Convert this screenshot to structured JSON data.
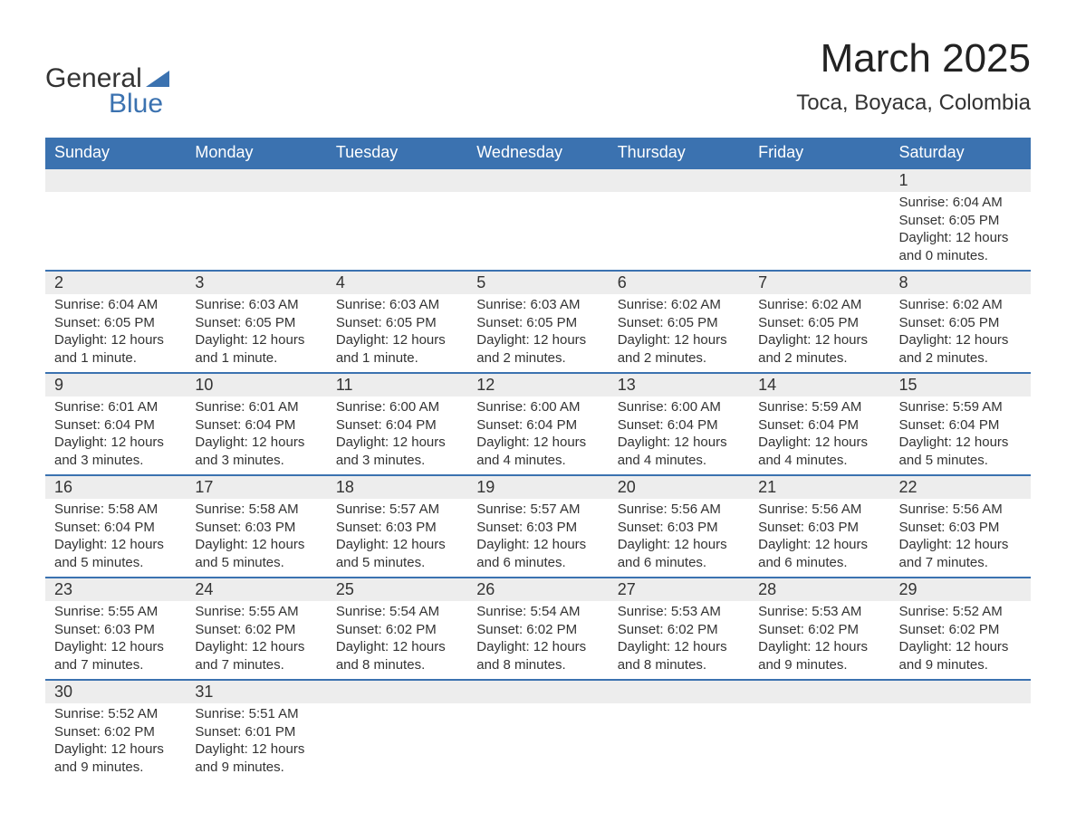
{
  "brand": {
    "general": "General",
    "blue": "Blue",
    "accent_color": "#3b72b0"
  },
  "title": "March 2025",
  "location": "Toca, Boyaca, Colombia",
  "weekdays": [
    "Sunday",
    "Monday",
    "Tuesday",
    "Wednesday",
    "Thursday",
    "Friday",
    "Saturday"
  ],
  "style": {
    "header_bg": "#3b72b0",
    "header_text": "#ffffff",
    "band_bg": "#ededed",
    "band_border": "#3b72b0",
    "body_text": "#333333",
    "page_bg": "#ffffff",
    "title_fontsize": 44,
    "location_fontsize": 24,
    "weekday_fontsize": 18,
    "daynum_fontsize": 18,
    "cell_fontsize": 15
  },
  "weeks": [
    [
      null,
      null,
      null,
      null,
      null,
      null,
      {
        "n": "1",
        "sr": "Sunrise: 6:04 AM",
        "ss": "Sunset: 6:05 PM",
        "dl1": "Daylight: 12 hours",
        "dl2": "and 0 minutes."
      }
    ],
    [
      {
        "n": "2",
        "sr": "Sunrise: 6:04 AM",
        "ss": "Sunset: 6:05 PM",
        "dl1": "Daylight: 12 hours",
        "dl2": "and 1 minute."
      },
      {
        "n": "3",
        "sr": "Sunrise: 6:03 AM",
        "ss": "Sunset: 6:05 PM",
        "dl1": "Daylight: 12 hours",
        "dl2": "and 1 minute."
      },
      {
        "n": "4",
        "sr": "Sunrise: 6:03 AM",
        "ss": "Sunset: 6:05 PM",
        "dl1": "Daylight: 12 hours",
        "dl2": "and 1 minute."
      },
      {
        "n": "5",
        "sr": "Sunrise: 6:03 AM",
        "ss": "Sunset: 6:05 PM",
        "dl1": "Daylight: 12 hours",
        "dl2": "and 2 minutes."
      },
      {
        "n": "6",
        "sr": "Sunrise: 6:02 AM",
        "ss": "Sunset: 6:05 PM",
        "dl1": "Daylight: 12 hours",
        "dl2": "and 2 minutes."
      },
      {
        "n": "7",
        "sr": "Sunrise: 6:02 AM",
        "ss": "Sunset: 6:05 PM",
        "dl1": "Daylight: 12 hours",
        "dl2": "and 2 minutes."
      },
      {
        "n": "8",
        "sr": "Sunrise: 6:02 AM",
        "ss": "Sunset: 6:05 PM",
        "dl1": "Daylight: 12 hours",
        "dl2": "and 2 minutes."
      }
    ],
    [
      {
        "n": "9",
        "sr": "Sunrise: 6:01 AM",
        "ss": "Sunset: 6:04 PM",
        "dl1": "Daylight: 12 hours",
        "dl2": "and 3 minutes."
      },
      {
        "n": "10",
        "sr": "Sunrise: 6:01 AM",
        "ss": "Sunset: 6:04 PM",
        "dl1": "Daylight: 12 hours",
        "dl2": "and 3 minutes."
      },
      {
        "n": "11",
        "sr": "Sunrise: 6:00 AM",
        "ss": "Sunset: 6:04 PM",
        "dl1": "Daylight: 12 hours",
        "dl2": "and 3 minutes."
      },
      {
        "n": "12",
        "sr": "Sunrise: 6:00 AM",
        "ss": "Sunset: 6:04 PM",
        "dl1": "Daylight: 12 hours",
        "dl2": "and 4 minutes."
      },
      {
        "n": "13",
        "sr": "Sunrise: 6:00 AM",
        "ss": "Sunset: 6:04 PM",
        "dl1": "Daylight: 12 hours",
        "dl2": "and 4 minutes."
      },
      {
        "n": "14",
        "sr": "Sunrise: 5:59 AM",
        "ss": "Sunset: 6:04 PM",
        "dl1": "Daylight: 12 hours",
        "dl2": "and 4 minutes."
      },
      {
        "n": "15",
        "sr": "Sunrise: 5:59 AM",
        "ss": "Sunset: 6:04 PM",
        "dl1": "Daylight: 12 hours",
        "dl2": "and 5 minutes."
      }
    ],
    [
      {
        "n": "16",
        "sr": "Sunrise: 5:58 AM",
        "ss": "Sunset: 6:04 PM",
        "dl1": "Daylight: 12 hours",
        "dl2": "and 5 minutes."
      },
      {
        "n": "17",
        "sr": "Sunrise: 5:58 AM",
        "ss": "Sunset: 6:03 PM",
        "dl1": "Daylight: 12 hours",
        "dl2": "and 5 minutes."
      },
      {
        "n": "18",
        "sr": "Sunrise: 5:57 AM",
        "ss": "Sunset: 6:03 PM",
        "dl1": "Daylight: 12 hours",
        "dl2": "and 5 minutes."
      },
      {
        "n": "19",
        "sr": "Sunrise: 5:57 AM",
        "ss": "Sunset: 6:03 PM",
        "dl1": "Daylight: 12 hours",
        "dl2": "and 6 minutes."
      },
      {
        "n": "20",
        "sr": "Sunrise: 5:56 AM",
        "ss": "Sunset: 6:03 PM",
        "dl1": "Daylight: 12 hours",
        "dl2": "and 6 minutes."
      },
      {
        "n": "21",
        "sr": "Sunrise: 5:56 AM",
        "ss": "Sunset: 6:03 PM",
        "dl1": "Daylight: 12 hours",
        "dl2": "and 6 minutes."
      },
      {
        "n": "22",
        "sr": "Sunrise: 5:56 AM",
        "ss": "Sunset: 6:03 PM",
        "dl1": "Daylight: 12 hours",
        "dl2": "and 7 minutes."
      }
    ],
    [
      {
        "n": "23",
        "sr": "Sunrise: 5:55 AM",
        "ss": "Sunset: 6:03 PM",
        "dl1": "Daylight: 12 hours",
        "dl2": "and 7 minutes."
      },
      {
        "n": "24",
        "sr": "Sunrise: 5:55 AM",
        "ss": "Sunset: 6:02 PM",
        "dl1": "Daylight: 12 hours",
        "dl2": "and 7 minutes."
      },
      {
        "n": "25",
        "sr": "Sunrise: 5:54 AM",
        "ss": "Sunset: 6:02 PM",
        "dl1": "Daylight: 12 hours",
        "dl2": "and 8 minutes."
      },
      {
        "n": "26",
        "sr": "Sunrise: 5:54 AM",
        "ss": "Sunset: 6:02 PM",
        "dl1": "Daylight: 12 hours",
        "dl2": "and 8 minutes."
      },
      {
        "n": "27",
        "sr": "Sunrise: 5:53 AM",
        "ss": "Sunset: 6:02 PM",
        "dl1": "Daylight: 12 hours",
        "dl2": "and 8 minutes."
      },
      {
        "n": "28",
        "sr": "Sunrise: 5:53 AM",
        "ss": "Sunset: 6:02 PM",
        "dl1": "Daylight: 12 hours",
        "dl2": "and 9 minutes."
      },
      {
        "n": "29",
        "sr": "Sunrise: 5:52 AM",
        "ss": "Sunset: 6:02 PM",
        "dl1": "Daylight: 12 hours",
        "dl2": "and 9 minutes."
      }
    ],
    [
      {
        "n": "30",
        "sr": "Sunrise: 5:52 AM",
        "ss": "Sunset: 6:02 PM",
        "dl1": "Daylight: 12 hours",
        "dl2": "and 9 minutes."
      },
      {
        "n": "31",
        "sr": "Sunrise: 5:51 AM",
        "ss": "Sunset: 6:01 PM",
        "dl1": "Daylight: 12 hours",
        "dl2": "and 9 minutes."
      },
      null,
      null,
      null,
      null,
      null
    ]
  ]
}
